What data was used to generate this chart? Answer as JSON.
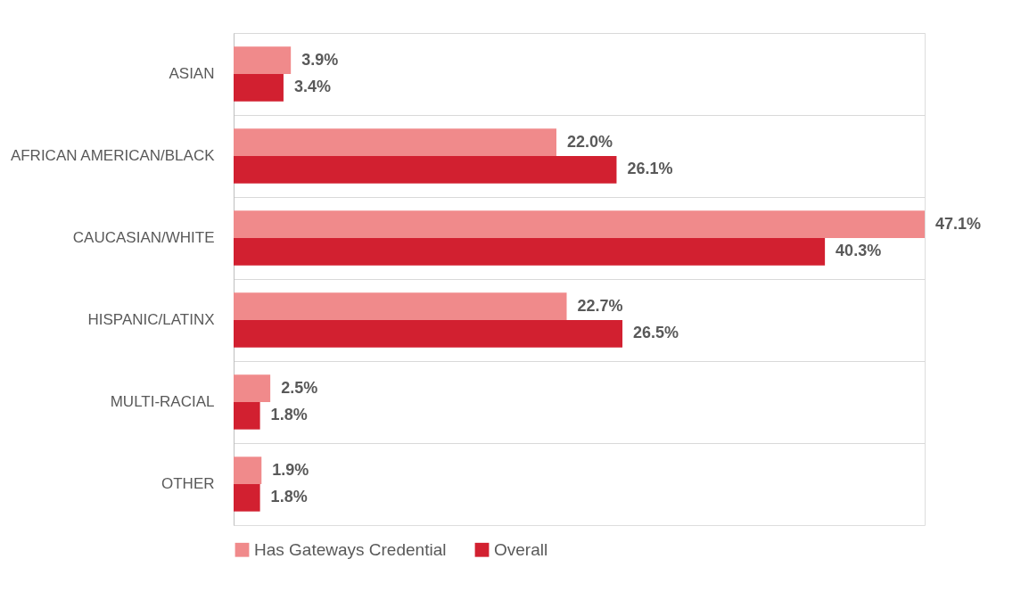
{
  "chart_data": {
    "type": "bar",
    "orientation": "horizontal",
    "categories": [
      "ASIAN",
      "AFRICAN AMERICAN/BLACK",
      "CAUCASIAN/WHITE",
      "HISPANIC/LATINX",
      "MULTI-RACIAL",
      "OTHER"
    ],
    "series": [
      {
        "name": "Has Gateways Credential",
        "color": "#f08a8b",
        "values": [
          3.9,
          22.0,
          47.1,
          22.7,
          2.5,
          1.9
        ],
        "value_labels": [
          "3.9%",
          "22.0%",
          "47.1%",
          "22.7%",
          "2.5%",
          "1.9%"
        ]
      },
      {
        "name": "Overall",
        "color": "#d22030",
        "values": [
          3.4,
          26.1,
          40.3,
          26.5,
          1.8,
          1.8
        ],
        "value_labels": [
          "3.4%",
          "26.1%",
          "40.3%",
          "26.5%",
          "1.8%",
          "1.8%"
        ]
      }
    ],
    "data_labels": true,
    "grid": "y",
    "legend": "bottom"
  }
}
